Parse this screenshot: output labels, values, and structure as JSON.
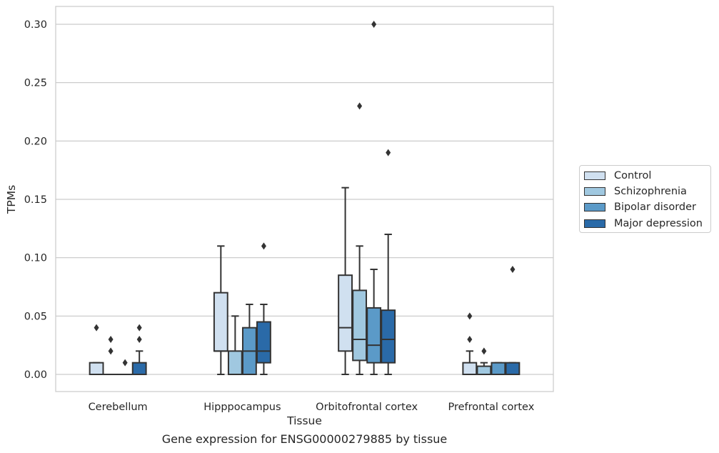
{
  "chart_data": {
    "type": "box",
    "title": "",
    "xlabel": "Tissue",
    "ylabel": "TPMs",
    "caption": "Gene expression for ENSG00000279885 by tissue",
    "categories": [
      "Cerebellum",
      "Hipppocampus",
      "Orbitofrontal cortex",
      "Prefrontal cortex"
    ],
    "ylim": [
      -0.015,
      0.315
    ],
    "yticks": [
      0.0,
      0.05,
      0.1,
      0.15,
      0.2,
      0.25,
      0.3
    ],
    "ytick_labels": [
      "0.00",
      "0.05",
      "0.10",
      "0.15",
      "0.20",
      "0.25",
      "0.30"
    ],
    "grid": "horizontal",
    "legend_position": "outside-right",
    "series": [
      {
        "name": "Control",
        "color": "#d0e0f0",
        "boxes": [
          {
            "q1": 0.0,
            "median": 0.0,
            "q3": 0.01,
            "whislo": 0.0,
            "whishi": 0.01,
            "fliers": [
              0.04
            ]
          },
          {
            "q1": 0.02,
            "median": 0.02,
            "q3": 0.07,
            "whislo": 0.0,
            "whishi": 0.11,
            "fliers": []
          },
          {
            "q1": 0.02,
            "median": 0.04,
            "q3": 0.085,
            "whislo": 0.0,
            "whishi": 0.16,
            "fliers": []
          },
          {
            "q1": 0.0,
            "median": 0.0,
            "q3": 0.01,
            "whislo": 0.0,
            "whishi": 0.02,
            "fliers": [
              0.03,
              0.05
            ]
          }
        ]
      },
      {
        "name": "Schizophrenia",
        "color": "#a0c8e0",
        "boxes": [
          {
            "q1": 0.0,
            "median": 0.0,
            "q3": 0.0,
            "whislo": 0.0,
            "whishi": 0.0,
            "fliers": [
              0.02,
              0.03
            ]
          },
          {
            "q1": 0.0,
            "median": 0.0,
            "q3": 0.02,
            "whislo": 0.0,
            "whishi": 0.05,
            "fliers": []
          },
          {
            "q1": 0.012,
            "median": 0.03,
            "q3": 0.072,
            "whislo": 0.0,
            "whishi": 0.11,
            "fliers": [
              0.23
            ]
          },
          {
            "q1": 0.0,
            "median": 0.0,
            "q3": 0.007,
            "whislo": 0.0,
            "whishi": 0.01,
            "fliers": [
              0.02
            ]
          }
        ]
      },
      {
        "name": "Bipolar disorder",
        "color": "#5b9ac8",
        "boxes": [
          {
            "q1": 0.0,
            "median": 0.0,
            "q3": 0.0,
            "whislo": 0.0,
            "whishi": 0.0,
            "fliers": [
              0.01
            ]
          },
          {
            "q1": 0.0,
            "median": 0.02,
            "q3": 0.04,
            "whislo": 0.0,
            "whishi": 0.06,
            "fliers": []
          },
          {
            "q1": 0.01,
            "median": 0.025,
            "q3": 0.057,
            "whislo": 0.0,
            "whishi": 0.09,
            "fliers": [
              0.3
            ]
          },
          {
            "q1": 0.0,
            "median": 0.0,
            "q3": 0.01,
            "whislo": 0.0,
            "whishi": 0.01,
            "fliers": []
          }
        ]
      },
      {
        "name": "Major depression",
        "color": "#2a6aa8",
        "boxes": [
          {
            "q1": 0.0,
            "median": 0.0,
            "q3": 0.01,
            "whislo": 0.0,
            "whishi": 0.02,
            "fliers": [
              0.03,
              0.04
            ]
          },
          {
            "q1": 0.01,
            "median": 0.02,
            "q3": 0.045,
            "whislo": 0.0,
            "whishi": 0.06,
            "fliers": [
              0.11
            ]
          },
          {
            "q1": 0.01,
            "median": 0.03,
            "q3": 0.055,
            "whislo": 0.0,
            "whishi": 0.12,
            "fliers": [
              0.19
            ]
          },
          {
            "q1": 0.0,
            "median": 0.0,
            "q3": 0.01,
            "whislo": 0.0,
            "whishi": 0.01,
            "fliers": [
              0.09
            ]
          }
        ]
      }
    ]
  }
}
